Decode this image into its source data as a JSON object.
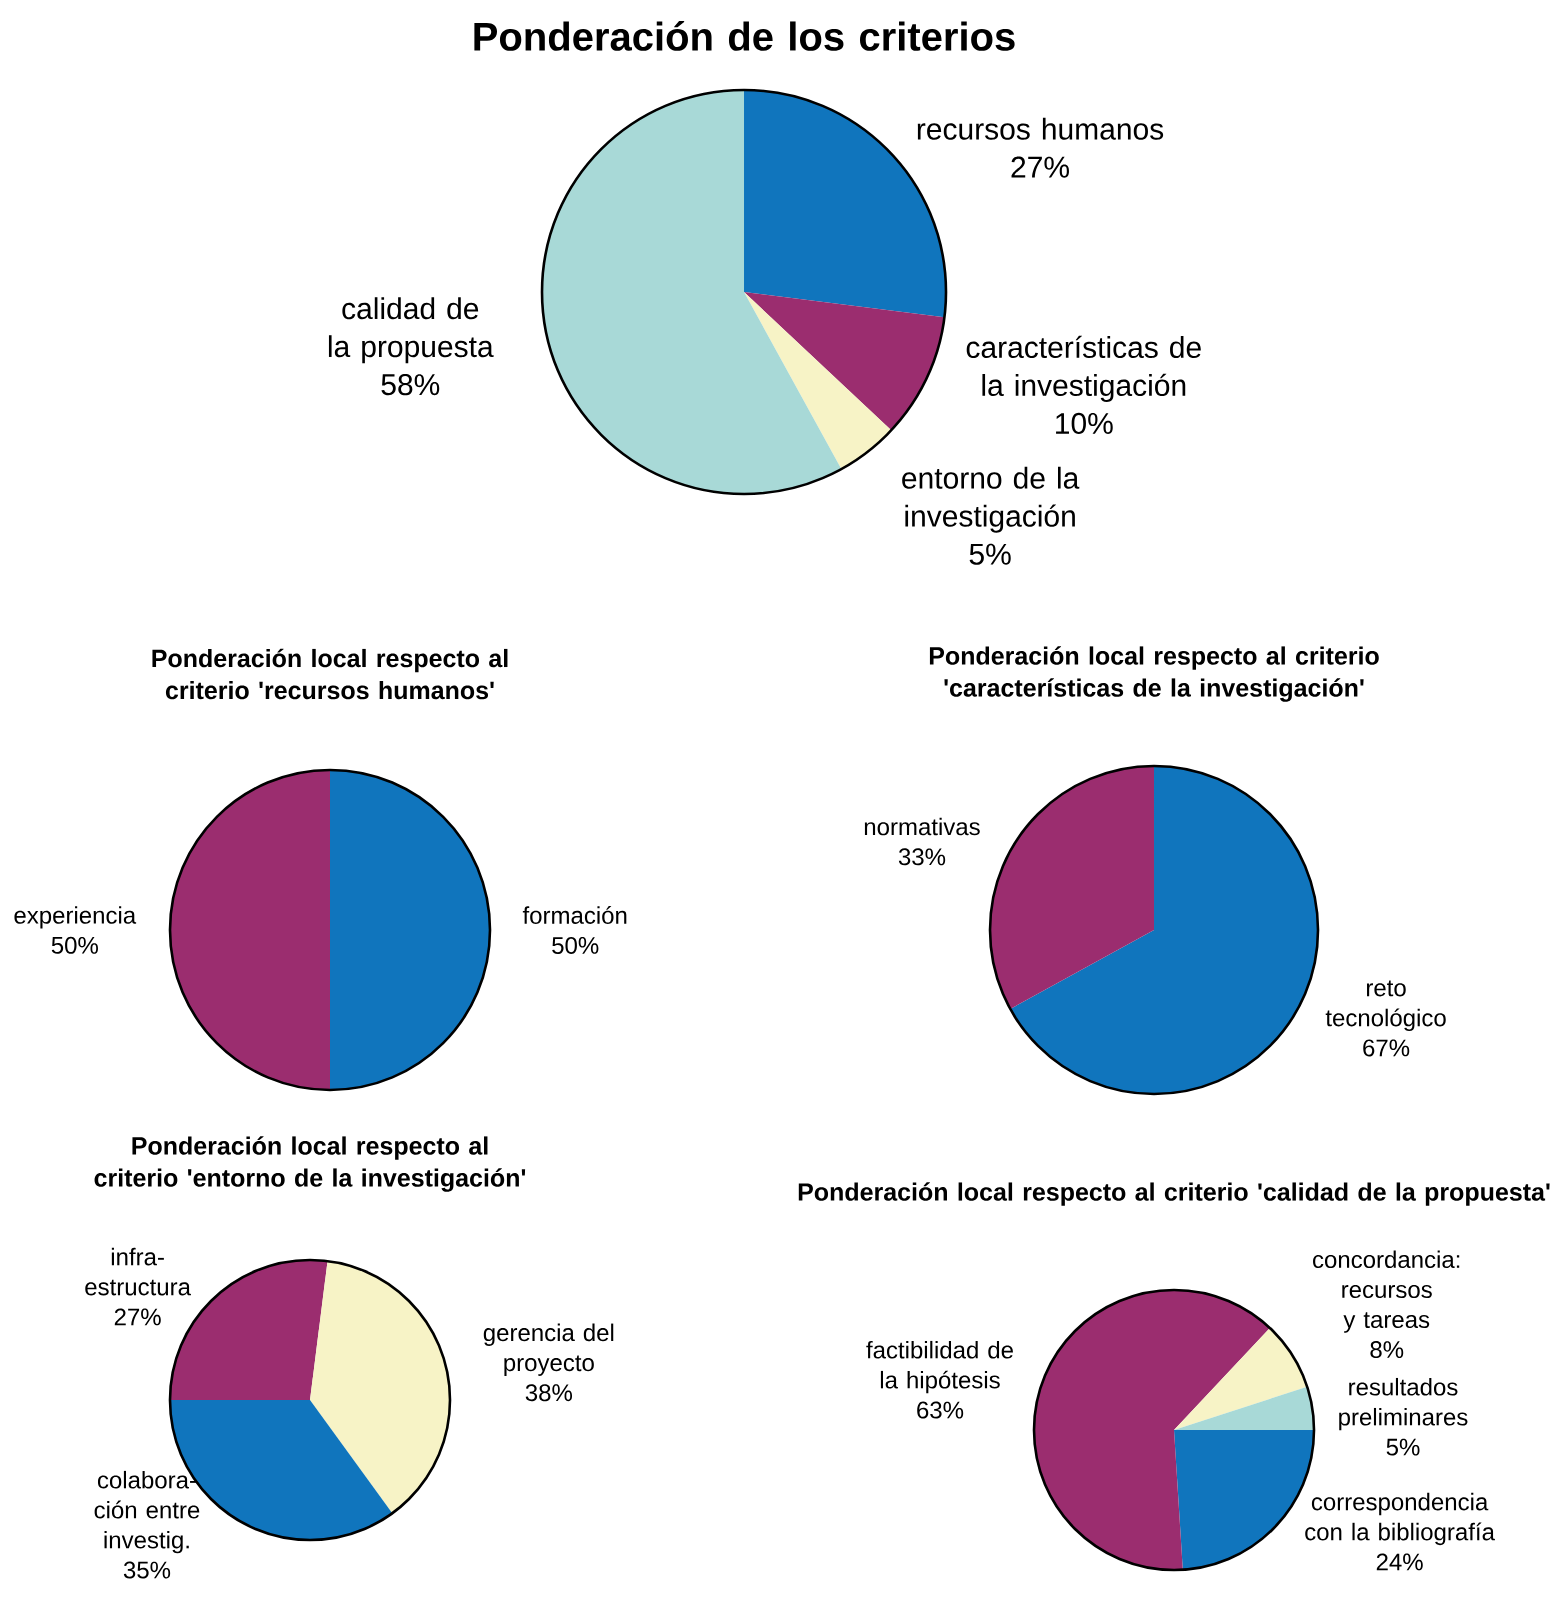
{
  "chart_data": [
    {
      "type": "pie",
      "title": "Ponderación de los criterios",
      "categories": [
        "recursos humanos",
        "características de la investigación",
        "entorno de la investigación",
        "calidad de la propuesta"
      ],
      "values": [
        27,
        10,
        5,
        58
      ],
      "value_labels": [
        "27%",
        "10%",
        "5%",
        "58%"
      ],
      "colors": [
        "#1075bd",
        "#9b2d6f",
        "#f7f3c6",
        "#a8d9d7"
      ]
    },
    {
      "type": "pie",
      "title": "Ponderación local respecto al criterio 'recursos humanos'",
      "categories": [
        "formación",
        "experiencia"
      ],
      "values": [
        50,
        50
      ],
      "value_labels": [
        "50%",
        "50%"
      ],
      "colors": [
        "#1075bd",
        "#9b2d6f"
      ]
    },
    {
      "type": "pie",
      "title": "Ponderación local respecto al criterio 'características de la investigación'",
      "categories": [
        "reto tecnológico",
        "normativas"
      ],
      "values": [
        67,
        33
      ],
      "value_labels": [
        "67%",
        "33%"
      ],
      "colors": [
        "#1075bd",
        "#9b2d6f"
      ]
    },
    {
      "type": "pie",
      "title": "Ponderación local respecto al criterio 'entorno de la investigación'",
      "categories": [
        "infra-estructura",
        "gerencia del proyecto",
        "colabora-ción entre investig."
      ],
      "values": [
        27,
        38,
        35
      ],
      "value_labels": [
        "27%",
        "38%",
        "35%"
      ],
      "colors": [
        "#9b2d6f",
        "#f7f3c6",
        "#1075bd"
      ]
    },
    {
      "type": "pie",
      "title": "Ponderación local respecto al criterio 'calidad de la propuesta'",
      "categories": [
        "correspondencia con la bibliografía",
        "factibilidad de la hipótesis",
        "concordancia: recursos y tareas",
        "resultados preliminares"
      ],
      "values": [
        24,
        63,
        8,
        5
      ],
      "value_labels": [
        "24%",
        "63%",
        "8%",
        "5%"
      ],
      "colors": [
        "#1075bd",
        "#9b2d6f",
        "#f7f3c6",
        "#a8d9d7"
      ]
    }
  ]
}
